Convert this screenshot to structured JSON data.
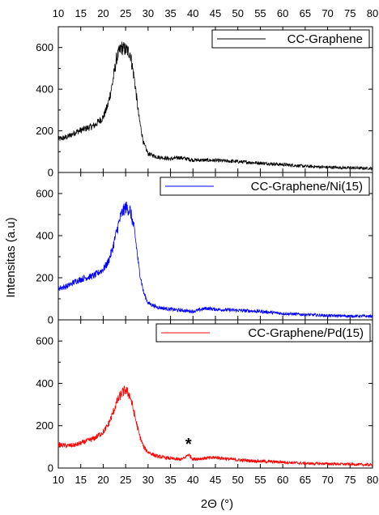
{
  "chart_data": {
    "type": "line",
    "xlabel": "2Θ (°)",
    "ylabel": "Intensitas (a.u)",
    "xlim": [
      10,
      80
    ],
    "x_ticks": [
      "10",
      "15",
      "20",
      "25",
      "30",
      "35",
      "40",
      "45",
      "50",
      "55",
      "60",
      "65",
      "70",
      "75",
      "80"
    ],
    "grid": false,
    "panels": [
      {
        "legend": "CC-Graphene",
        "color": "#000000",
        "ylim": [
          0,
          700
        ],
        "y_ticks": [
          "0",
          "200",
          "400",
          "600"
        ],
        "series": [
          {
            "name": "CC-Graphene",
            "x": [
              10,
              12,
              14,
              16,
              18,
              20,
              21,
              22,
              23,
              24,
              25,
              26,
              27,
              28,
              29,
              30,
              32,
              35,
              37,
              40,
              45,
              50,
              55,
              60,
              65,
              70,
              75,
              80
            ],
            "y": [
              160,
              170,
              195,
              210,
              225,
              265,
              320,
              420,
              550,
              600,
              590,
              575,
              440,
              260,
              140,
              90,
              75,
              65,
              72,
              60,
              58,
              52,
              45,
              38,
              30,
              25,
              22,
              20
            ]
          }
        ],
        "annotations": []
      },
      {
        "legend": "CC-Graphene/Ni(15)",
        "color": "#0000ff",
        "ylim": [
          0,
          700
        ],
        "y_ticks": [
          "0",
          "200",
          "400",
          "600"
        ],
        "series": [
          {
            "name": "CC-Graphene/Ni(15)",
            "x": [
              10,
              12,
              14,
              16,
              18,
              20,
              21,
              22,
              23,
              24,
              25,
              26,
              27,
              28,
              29,
              30,
              32,
              35,
              40,
              43,
              45,
              50,
              55,
              60,
              65,
              70,
              75,
              80
            ],
            "y": [
              150,
              160,
              185,
              200,
              210,
              240,
              270,
              330,
              420,
              500,
              535,
              520,
              420,
              240,
              130,
              80,
              60,
              50,
              40,
              55,
              50,
              45,
              40,
              30,
              25,
              20,
              18,
              17
            ]
          }
        ],
        "annotations": []
      },
      {
        "legend": "CC-Graphene/Pd(15)",
        "color": "#ff0000",
        "ylim": [
          0,
          700
        ],
        "y_ticks": [
          "0",
          "200",
          "400",
          "600"
        ],
        "series": [
          {
            "name": "CC-Graphene/Pd(15)",
            "x": [
              10,
              12,
              14,
              16,
              18,
              20,
              21,
              22,
              23,
              24,
              25,
              26,
              27,
              28,
              29,
              30,
              32,
              35,
              37,
              38,
              39,
              40,
              42,
              45,
              50,
              55,
              60,
              65,
              70,
              75,
              80
            ],
            "y": [
              110,
              105,
              110,
              125,
              140,
              170,
              200,
              250,
              310,
              350,
              370,
              340,
              250,
              160,
              100,
              75,
              55,
              45,
              40,
              45,
              65,
              42,
              45,
              50,
              38,
              32,
              28,
              22,
              20,
              18,
              15
            ]
          }
        ],
        "annotations": [
          {
            "text": "*",
            "x": 39,
            "y": 110
          }
        ]
      }
    ]
  }
}
